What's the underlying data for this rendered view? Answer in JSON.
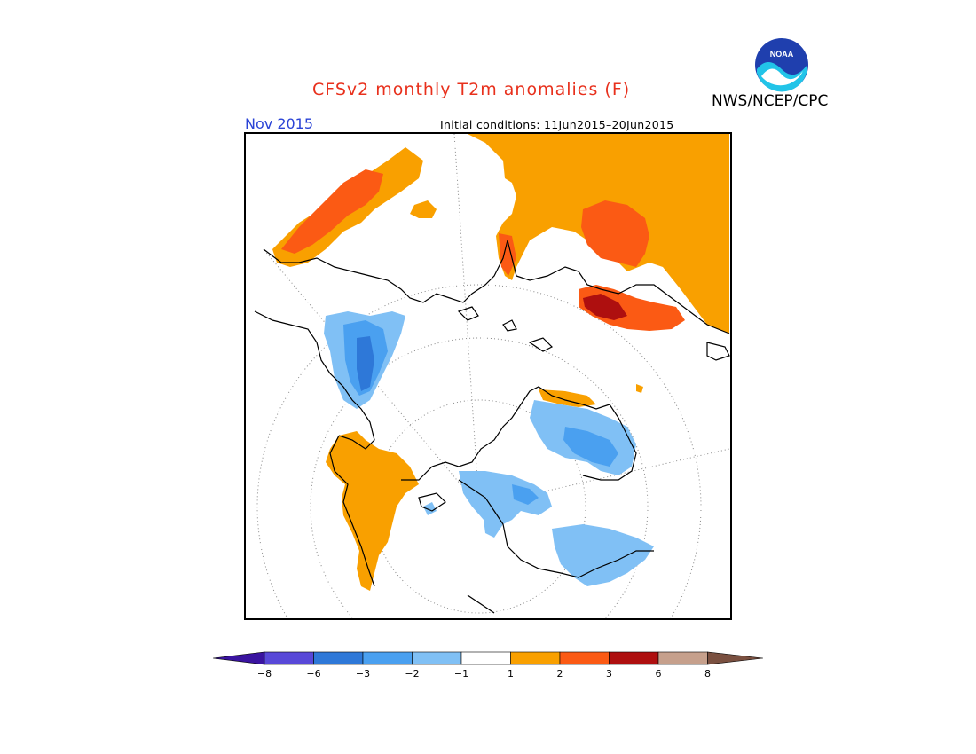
{
  "header": {
    "title": "CFSv2 monthly T2m anomalies (F)",
    "month": "Nov 2015",
    "initial_conditions": "Initial conditions: 11Jun2015–20Jun2015",
    "agency": "NWS/NCEP/CPC",
    "logo_text": "NOAA"
  },
  "legend": {
    "colors": [
      "#3a14a0",
      "#5848d8",
      "#2e78d8",
      "#4aa0f0",
      "#80c0f5",
      "#ffffff",
      "#f9a000",
      "#fb5a14",
      "#ae0f0f",
      "#c6a08c",
      "#7a5040"
    ],
    "ticks": [
      "−8",
      "−6",
      "−3",
      "−2",
      "−1",
      "1",
      "2",
      "3",
      "6",
      "8"
    ]
  },
  "colors": {
    "title": "#e8301c",
    "month": "#2a43d6",
    "coast": "#000000"
  }
}
